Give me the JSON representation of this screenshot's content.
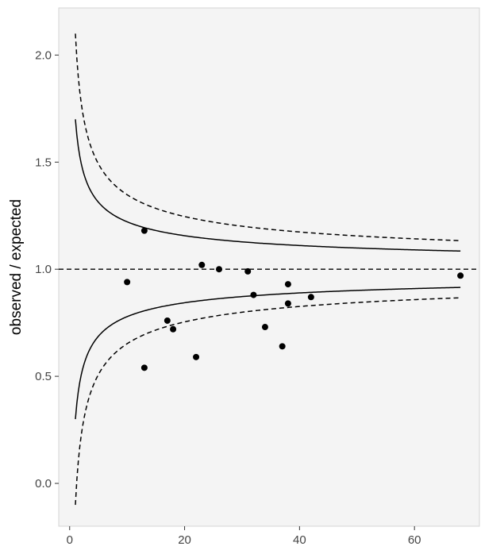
{
  "chart_data": {
    "type": "scatter",
    "title": "",
    "xlabel": "",
    "ylabel": "observed / expected",
    "xlim": [
      -1.9,
      71.3
    ],
    "ylim": [
      -0.2,
      2.22
    ],
    "x_ticks": [
      0,
      20,
      40,
      60
    ],
    "y_ticks": [
      0.0,
      0.5,
      1.0,
      1.5,
      2.0
    ],
    "x_tick_labels": [
      "0",
      "20",
      "40",
      "60"
    ],
    "y_tick_labels": [
      "0.0",
      "0.5",
      "1.0",
      "1.5",
      "2.0"
    ],
    "grid": false,
    "panel_background": "#f4f4f4",
    "reference_line": {
      "y": 1.0,
      "style": "dashed"
    },
    "points": [
      {
        "x": 10,
        "y": 0.94
      },
      {
        "x": 13,
        "y": 1.18
      },
      {
        "x": 13,
        "y": 0.54
      },
      {
        "x": 17,
        "y": 0.76
      },
      {
        "x": 18,
        "y": 0.72
      },
      {
        "x": 22,
        "y": 0.59
      },
      {
        "x": 23,
        "y": 1.02
      },
      {
        "x": 26,
        "y": 1.0
      },
      {
        "x": 31,
        "y": 0.99
      },
      {
        "x": 32,
        "y": 0.88
      },
      {
        "x": 34,
        "y": 0.73
      },
      {
        "x": 37,
        "y": 0.64
      },
      {
        "x": 38,
        "y": 0.93
      },
      {
        "x": 38,
        "y": 0.84
      },
      {
        "x": 42,
        "y": 0.87
      },
      {
        "x": 68,
        "y": 0.97
      }
    ],
    "funnel_limits": [
      {
        "style": "solid",
        "z": 0.7
      },
      {
        "style": "dashed",
        "z": 1.1
      }
    ],
    "funnel_x_range": [
      1,
      68
    ]
  }
}
